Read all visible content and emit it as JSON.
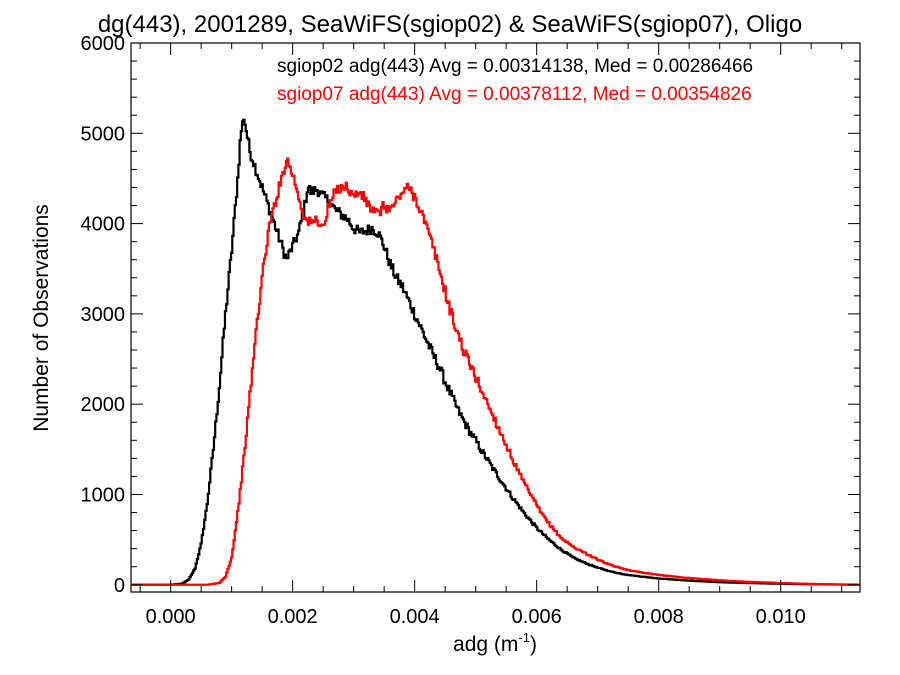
{
  "chart_data": {
    "type": "line",
    "title": "dg(443), 2001289, SeaWiFS(sgiop02) & SeaWiFS(sgiop07), Oligo",
    "xlabel": "adg (m",
    "xlabel_sup": "-1",
    "xlabel_close": ")",
    "ylabel": "Number of Observations",
    "xlim": [
      -0.00065,
      0.0113
    ],
    "ylim": [
      -80,
      6000
    ],
    "x_ticks": [
      0.0,
      0.002,
      0.004,
      0.006,
      0.008,
      0.01
    ],
    "x_tick_labels": [
      "0.000",
      "0.002",
      "0.004",
      "0.006",
      "0.008",
      "0.010"
    ],
    "y_ticks": [
      0,
      1000,
      2000,
      3000,
      4000,
      5000,
      6000
    ],
    "y_tick_labels": [
      "0",
      "1000",
      "2000",
      "3000",
      "4000",
      "5000",
      "6000"
    ],
    "grid": false,
    "legend_position": "top-right",
    "series": [
      {
        "name": "sgiop02",
        "legend": "sgiop02 adg(443) Avg = 0.00314138, Med = 0.00286466",
        "color": "#000000",
        "points": [
          [
            -0.00065,
            0
          ],
          [
            0.0,
            0
          ],
          [
            0.0002,
            15
          ],
          [
            0.0003,
            60
          ],
          [
            0.0004,
            180
          ],
          [
            0.0005,
            450
          ],
          [
            0.0006,
            900
          ],
          [
            0.0007,
            1500
          ],
          [
            0.0008,
            2200
          ],
          [
            0.0009,
            3000
          ],
          [
            0.001,
            3700
          ],
          [
            0.0011,
            4500
          ],
          [
            0.00115,
            5000
          ],
          [
            0.0012,
            5180
          ],
          [
            0.00125,
            5000
          ],
          [
            0.0013,
            4800
          ],
          [
            0.0014,
            4600
          ],
          [
            0.0015,
            4400
          ],
          [
            0.0016,
            4200
          ],
          [
            0.0017,
            4000
          ],
          [
            0.0018,
            3800
          ],
          [
            0.0019,
            3600
          ],
          [
            0.002,
            3750
          ],
          [
            0.0021,
            3900
          ],
          [
            0.0022,
            4200
          ],
          [
            0.00225,
            4420
          ],
          [
            0.0023,
            4350
          ],
          [
            0.0024,
            4380
          ],
          [
            0.0025,
            4300
          ],
          [
            0.0026,
            4250
          ],
          [
            0.0027,
            4150
          ],
          [
            0.0028,
            4100
          ],
          [
            0.0029,
            4050
          ],
          [
            0.003,
            3950
          ],
          [
            0.0031,
            3900
          ],
          [
            0.0032,
            3920
          ],
          [
            0.0033,
            3950
          ],
          [
            0.0034,
            3900
          ],
          [
            0.0035,
            3750
          ],
          [
            0.0036,
            3550
          ],
          [
            0.0037,
            3400
          ],
          [
            0.0038,
            3300
          ],
          [
            0.0039,
            3150
          ],
          [
            0.004,
            3000
          ],
          [
            0.0041,
            2850
          ],
          [
            0.0042,
            2700
          ],
          [
            0.0043,
            2550
          ],
          [
            0.0044,
            2420
          ],
          [
            0.0045,
            2250
          ],
          [
            0.0046,
            2100
          ],
          [
            0.0047,
            1950
          ],
          [
            0.0048,
            1820
          ],
          [
            0.0049,
            1700
          ],
          [
            0.005,
            1600
          ],
          [
            0.0051,
            1480
          ],
          [
            0.0052,
            1380
          ],
          [
            0.0053,
            1270
          ],
          [
            0.0054,
            1170
          ],
          [
            0.0055,
            1070
          ],
          [
            0.0056,
            970
          ],
          [
            0.0057,
            880
          ],
          [
            0.0058,
            790
          ],
          [
            0.0059,
            710
          ],
          [
            0.006,
            630
          ],
          [
            0.0062,
            500
          ],
          [
            0.0064,
            390
          ],
          [
            0.0066,
            300
          ],
          [
            0.0068,
            240
          ],
          [
            0.007,
            190
          ],
          [
            0.0072,
            150
          ],
          [
            0.0074,
            120
          ],
          [
            0.0076,
            100
          ],
          [
            0.0078,
            85
          ],
          [
            0.008,
            70
          ],
          [
            0.0082,
            60
          ],
          [
            0.0084,
            50
          ],
          [
            0.0086,
            42
          ],
          [
            0.0088,
            35
          ],
          [
            0.009,
            28
          ],
          [
            0.0094,
            20
          ],
          [
            0.0098,
            14
          ],
          [
            0.0102,
            9
          ],
          [
            0.0106,
            5
          ],
          [
            0.011,
            2
          ],
          [
            0.0113,
            1
          ]
        ]
      },
      {
        "name": "sgiop07",
        "legend": "sgiop07 adg(443) Avg = 0.00378112, Med = 0.00354826",
        "color": "#ff0000",
        "points": [
          [
            -0.00065,
            0
          ],
          [
            0.0006,
            0
          ],
          [
            0.0008,
            20
          ],
          [
            0.0009,
            90
          ],
          [
            0.001,
            300
          ],
          [
            0.0011,
            800
          ],
          [
            0.0012,
            1400
          ],
          [
            0.0013,
            2100
          ],
          [
            0.0014,
            2800
          ],
          [
            0.0015,
            3400
          ],
          [
            0.0016,
            3900
          ],
          [
            0.0017,
            4200
          ],
          [
            0.0018,
            4450
          ],
          [
            0.0019,
            4720
          ],
          [
            0.002,
            4550
          ],
          [
            0.0021,
            4300
          ],
          [
            0.0022,
            4050
          ],
          [
            0.0023,
            4000
          ],
          [
            0.0024,
            4050
          ],
          [
            0.0025,
            3950
          ],
          [
            0.0026,
            4200
          ],
          [
            0.0027,
            4350
          ],
          [
            0.0028,
            4420
          ],
          [
            0.0029,
            4400
          ],
          [
            0.003,
            4300
          ],
          [
            0.0031,
            4350
          ],
          [
            0.0032,
            4250
          ],
          [
            0.0033,
            4150
          ],
          [
            0.0034,
            4100
          ],
          [
            0.0035,
            4200
          ],
          [
            0.0036,
            4150
          ],
          [
            0.0037,
            4250
          ],
          [
            0.0038,
            4350
          ],
          [
            0.0039,
            4400
          ],
          [
            0.004,
            4300
          ],
          [
            0.0041,
            4150
          ],
          [
            0.0042,
            3950
          ],
          [
            0.0043,
            3750
          ],
          [
            0.0044,
            3500
          ],
          [
            0.0045,
            3250
          ],
          [
            0.0046,
            3000
          ],
          [
            0.0047,
            2800
          ],
          [
            0.0048,
            2600
          ],
          [
            0.0049,
            2450
          ],
          [
            0.005,
            2300
          ],
          [
            0.0051,
            2150
          ],
          [
            0.0052,
            2000
          ],
          [
            0.0053,
            1850
          ],
          [
            0.0054,
            1700
          ],
          [
            0.0055,
            1550
          ],
          [
            0.0056,
            1400
          ],
          [
            0.0057,
            1250
          ],
          [
            0.0058,
            1120
          ],
          [
            0.0059,
            1000
          ],
          [
            0.006,
            880
          ],
          [
            0.0061,
            770
          ],
          [
            0.0062,
            680
          ],
          [
            0.0063,
            600
          ],
          [
            0.0064,
            520
          ],
          [
            0.0065,
            470
          ],
          [
            0.0066,
            420
          ],
          [
            0.0068,
            350
          ],
          [
            0.007,
            280
          ],
          [
            0.0072,
            220
          ],
          [
            0.0074,
            180
          ],
          [
            0.0076,
            150
          ],
          [
            0.0078,
            130
          ],
          [
            0.008,
            110
          ],
          [
            0.0082,
            95
          ],
          [
            0.0084,
            80
          ],
          [
            0.0086,
            70
          ],
          [
            0.0088,
            60
          ],
          [
            0.009,
            50
          ],
          [
            0.0094,
            35
          ],
          [
            0.0098,
            25
          ],
          [
            0.0102,
            15
          ],
          [
            0.0106,
            8
          ],
          [
            0.011,
            4
          ],
          [
            0.0113,
            2
          ]
        ]
      }
    ]
  }
}
